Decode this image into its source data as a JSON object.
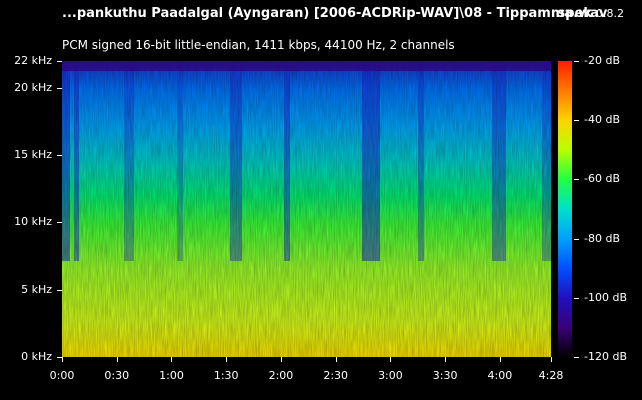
{
  "header": {
    "file_title": "...pankuthu Paadalgal (Ayngaran) [2006-ACDRip-WAV]\\08 - Tippamma.wav",
    "app_name": "spek",
    "app_version": "0.8.2",
    "stream_info": "PCM signed 16-bit little-endian, 1411 kbps, 44100 Hz, 2 channels"
  },
  "freq_axis": {
    "ticks": [
      "22 kHz",
      "20 kHz",
      "15 kHz",
      "10 kHz",
      "5 kHz",
      "0 kHz"
    ],
    "values": [
      22,
      20,
      15,
      10,
      5,
      0
    ],
    "max": 22
  },
  "time_axis": {
    "ticks": [
      "0:00",
      "0:30",
      "1:00",
      "1:30",
      "2:00",
      "2:30",
      "3:00",
      "3:30",
      "4:00",
      "4:28"
    ],
    "values": [
      0,
      30,
      60,
      90,
      120,
      150,
      180,
      210,
      240,
      268
    ],
    "max": 268
  },
  "db_axis": {
    "ticks": [
      "-20 dB",
      "-40 dB",
      "-60 dB",
      "-80 dB",
      "-100 dB",
      "-120 dB"
    ],
    "values": [
      -20,
      -40,
      -60,
      -80,
      -100,
      -120
    ],
    "max": -20,
    "min": -120
  },
  "colors": {
    "background": "#000000",
    "text": "#ffffff"
  }
}
